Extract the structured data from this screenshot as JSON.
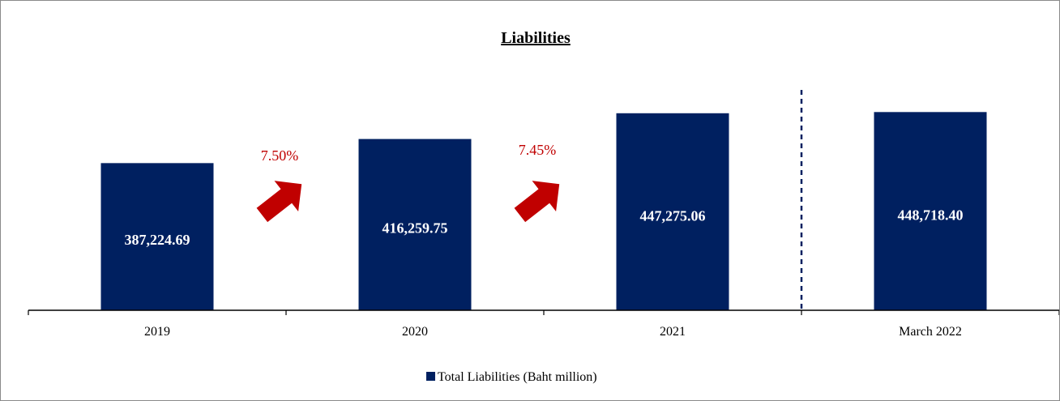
{
  "colors": {
    "bar": "#002060",
    "arrow": "#c00000",
    "axis": "#000000",
    "divider": "#002060"
  },
  "chart_data": {
    "type": "bar",
    "title": "Liabilities",
    "categories": [
      "2019",
      "2020",
      "2021",
      "March 2022"
    ],
    "series": [
      {
        "name": "Total Liabilities (Baht million)",
        "values": [
          387224.69,
          416259.75,
          447275.06,
          448718.4
        ],
        "labels": [
          "387,224.69",
          "416,259.75",
          "447,275.06",
          "448,718.40"
        ]
      }
    ],
    "growth": [
      {
        "from": "2019",
        "to": "2020",
        "label": "7.50%"
      },
      {
        "from": "2020",
        "to": "2021",
        "label": "7.45%"
      }
    ],
    "divider_between": [
      "2021",
      "March 2022"
    ],
    "legend_position": "bottom",
    "grid": false
  }
}
